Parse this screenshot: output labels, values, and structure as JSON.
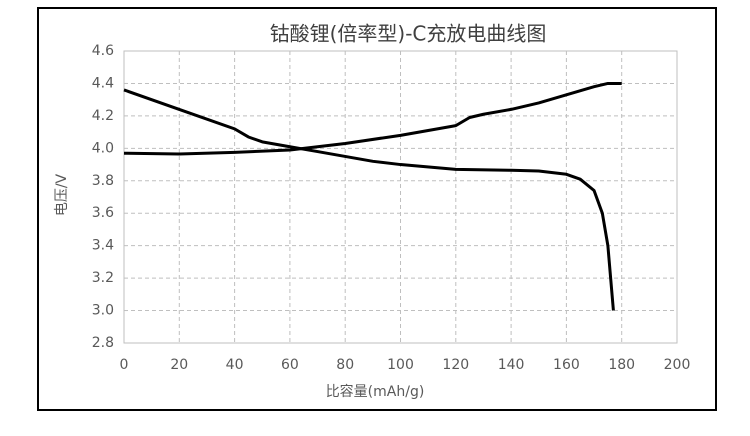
{
  "chart_data": {
    "type": "line",
    "title": "钴酸锂(倍率型)-C充放电曲线图",
    "x_label": "比容量(mAh/g)",
    "y_label": "电压/V",
    "xlim": [
      0,
      200
    ],
    "xticks": [
      0,
      20,
      40,
      60,
      80,
      100,
      120,
      140,
      160,
      180,
      200
    ],
    "ylim": [
      2.8,
      4.6
    ],
    "yticks": [
      2.8,
      {
        "value": 3,
        "label": "3.0"
      },
      3.2,
      3.4,
      3.6,
      3.8,
      {
        "value": 4,
        "label": "4.0"
      },
      4.2,
      4.4,
      4.6
    ],
    "grid": true,
    "series": [
      {
        "color": "#000000",
        "x": [
          0,
          20,
          40,
          60,
          65,
          80,
          100,
          110,
          120,
          125,
          130,
          140,
          150,
          160,
          170,
          175,
          180
        ],
        "values": [
          3.97,
          3.965,
          3.975,
          3.99,
          4.0,
          4.03,
          4.08,
          4.11,
          4.14,
          4.19,
          4.21,
          4.24,
          4.28,
          4.33,
          4.38,
          4.4,
          4.4
        ]
      },
      {
        "color": "#000000",
        "x": [
          0,
          20,
          40,
          45,
          50,
          60,
          70,
          80,
          90,
          100,
          120,
          140,
          150,
          160,
          165,
          170,
          173,
          175,
          176,
          177
        ],
        "values": [
          4.36,
          4.24,
          4.12,
          4.07,
          4.04,
          4.01,
          3.98,
          3.95,
          3.92,
          3.9,
          3.87,
          3.865,
          3.86,
          3.84,
          3.81,
          3.74,
          3.6,
          3.4,
          3.2,
          3.0
        ]
      }
    ]
  }
}
